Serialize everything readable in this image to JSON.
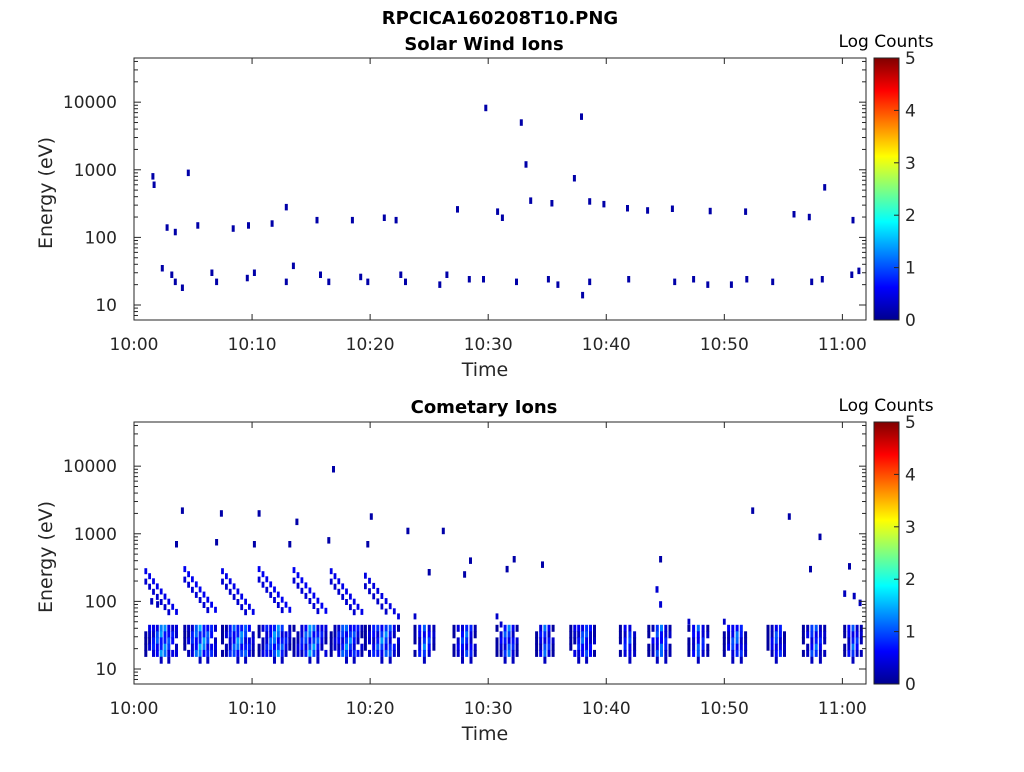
{
  "figure": {
    "title": "RPCICA160208T10.PNG"
  },
  "chart_data": [
    {
      "type": "heatmap",
      "title": "Solar Wind Ions",
      "xlabel": "Time",
      "ylabel": "Energy (eV)",
      "xlim_minutes": [
        0,
        62
      ],
      "x_ticks": [
        {
          "m": 0,
          "label": "10:00"
        },
        {
          "m": 10,
          "label": "10:10"
        },
        {
          "m": 20,
          "label": "10:20"
        },
        {
          "m": 30,
          "label": "10:30"
        },
        {
          "m": 40,
          "label": "10:40"
        },
        {
          "m": 50,
          "label": "10:50"
        },
        {
          "m": 60,
          "label": "11:00"
        }
      ],
      "yscale": "log",
      "ylim_eV": [
        6,
        45000
      ],
      "y_ticks": [
        {
          "v": 10,
          "label": "10"
        },
        {
          "v": 100,
          "label": "100"
        },
        {
          "v": 1000,
          "label": "1000"
        },
        {
          "v": 10000,
          "label": "10000"
        }
      ],
      "colorbar": {
        "label": "Log Counts",
        "range": [
          0,
          5
        ],
        "ticks": [
          "0",
          "1",
          "2",
          "3",
          "4",
          "5"
        ],
        "colormap": "jet"
      },
      "cells": [
        [
          1.6,
          800,
          0.2
        ],
        [
          1.7,
          600,
          0.2
        ],
        [
          2.8,
          140,
          0.2
        ],
        [
          3.5,
          120,
          0.2
        ],
        [
          4.6,
          900,
          0.2
        ],
        [
          5.4,
          150,
          0.2
        ],
        [
          8.4,
          135,
          0.2
        ],
        [
          9.7,
          150,
          0.2
        ],
        [
          11.7,
          160,
          0.2
        ],
        [
          12.9,
          280,
          0.2
        ],
        [
          15.5,
          180,
          0.2
        ],
        [
          18.5,
          180,
          0.2
        ],
        [
          21.2,
          195,
          0.2
        ],
        [
          22.2,
          180,
          0.2
        ],
        [
          27.4,
          260,
          0.2
        ],
        [
          29.8,
          8200,
          0.2
        ],
        [
          30.8,
          240,
          0.2
        ],
        [
          31.2,
          195,
          0.2
        ],
        [
          32.8,
          5000,
          0.2
        ],
        [
          33.2,
          1200,
          0.2
        ],
        [
          33.6,
          350,
          0.2
        ],
        [
          35.4,
          320,
          0.2
        ],
        [
          37.3,
          750,
          0.2
        ],
        [
          37.9,
          6100,
          0.2
        ],
        [
          38.6,
          340,
          0.2
        ],
        [
          39.8,
          310,
          0.2
        ],
        [
          41.8,
          270,
          0.2
        ],
        [
          43.5,
          250,
          0.2
        ],
        [
          45.6,
          265,
          0.2
        ],
        [
          48.8,
          245,
          0.2
        ],
        [
          51.8,
          240,
          0.2
        ],
        [
          55.9,
          220,
          0.2
        ],
        [
          57.2,
          200,
          0.2
        ],
        [
          58.5,
          550,
          0.2
        ],
        [
          60.9,
          180,
          0.2
        ],
        [
          2.4,
          35,
          0.2
        ],
        [
          3.2,
          28,
          0.2
        ],
        [
          3.5,
          22,
          0.2
        ],
        [
          4.1,
          18,
          0.2
        ],
        [
          6.6,
          30,
          0.2
        ],
        [
          7.0,
          22,
          0.2
        ],
        [
          9.6,
          25,
          0.2
        ],
        [
          10.2,
          30,
          0.2
        ],
        [
          12.9,
          22,
          0.2
        ],
        [
          13.5,
          38,
          0.2
        ],
        [
          15.8,
          28,
          0.2
        ],
        [
          16.5,
          22,
          0.2
        ],
        [
          19.2,
          26,
          0.2
        ],
        [
          19.8,
          22,
          0.2
        ],
        [
          22.6,
          28,
          0.2
        ],
        [
          23.0,
          22,
          0.2
        ],
        [
          25.9,
          20,
          0.2
        ],
        [
          26.5,
          28,
          0.2
        ],
        [
          28.4,
          24,
          0.2
        ],
        [
          29.6,
          24,
          0.2
        ],
        [
          32.4,
          22,
          0.2
        ],
        [
          35.1,
          24,
          0.2
        ],
        [
          35.9,
          20,
          0.2
        ],
        [
          38.0,
          14,
          0.2
        ],
        [
          38.6,
          22,
          0.2
        ],
        [
          41.9,
          24,
          0.2
        ],
        [
          45.8,
          22,
          0.2
        ],
        [
          47.4,
          24,
          0.2
        ],
        [
          48.6,
          20,
          0.2
        ],
        [
          50.6,
          20,
          0.2
        ],
        [
          51.9,
          24,
          0.2
        ],
        [
          54.1,
          22,
          0.2
        ],
        [
          57.4,
          22,
          0.2
        ],
        [
          58.3,
          24,
          0.2
        ],
        [
          60.8,
          28,
          0.2
        ],
        [
          61.4,
          32,
          0.2
        ]
      ]
    },
    {
      "type": "heatmap",
      "title": "Cometary Ions",
      "xlabel": "Time",
      "ylabel": "Energy (eV)",
      "xlim_minutes": [
        0,
        62
      ],
      "x_ticks": [
        {
          "m": 0,
          "label": "10:00"
        },
        {
          "m": 10,
          "label": "10:10"
        },
        {
          "m": 20,
          "label": "10:20"
        },
        {
          "m": 30,
          "label": "10:30"
        },
        {
          "m": 40,
          "label": "10:40"
        },
        {
          "m": 50,
          "label": "10:50"
        },
        {
          "m": 60,
          "label": "11:00"
        }
      ],
      "yscale": "log",
      "ylim_eV": [
        6,
        45000
      ],
      "y_ticks": [
        {
          "v": 10,
          "label": "10"
        },
        {
          "v": 100,
          "label": "100"
        },
        {
          "v": 1000,
          "label": "1000"
        },
        {
          "v": 10000,
          "label": "10000"
        }
      ],
      "colorbar": {
        "label": "Log Counts",
        "range": [
          0,
          5
        ],
        "ticks": [
          "0",
          "1",
          "2",
          "3",
          "4",
          "5"
        ],
        "colormap": "jet"
      },
      "cells": [
        [
          16.9,
          9000,
          0.2
        ],
        [
          4.1,
          2200,
          0.2
        ],
        [
          7.4,
          2000,
          0.2
        ],
        [
          10.6,
          2000,
          0.2
        ],
        [
          20.1,
          1800,
          0.2
        ],
        [
          13.8,
          1500,
          0.2
        ],
        [
          26.2,
          1100,
          0.2
        ],
        [
          23.2,
          1100,
          0.2
        ],
        [
          52.4,
          2200,
          0.2
        ],
        [
          55.5,
          1800,
          0.2
        ],
        [
          58.1,
          900,
          0.2
        ],
        [
          3.6,
          700,
          0.2
        ],
        [
          7.0,
          750,
          0.2
        ],
        [
          10.2,
          700,
          0.2
        ],
        [
          13.2,
          700,
          0.2
        ],
        [
          16.5,
          800,
          0.2
        ],
        [
          19.8,
          700,
          0.2
        ],
        [
          28.5,
          400,
          0.2
        ],
        [
          32.2,
          420,
          0.2
        ],
        [
          34.6,
          350,
          0.2
        ],
        [
          28.0,
          250,
          0.2
        ],
        [
          31.6,
          300,
          0.2
        ],
        [
          25.0,
          270,
          0.2
        ],
        [
          44.6,
          420,
          0.2
        ],
        [
          60.6,
          330,
          0.2
        ],
        [
          57.3,
          300,
          0.2
        ],
        [
          1.5,
          100,
          0.3
        ],
        [
          2.0,
          90,
          0.3
        ],
        [
          44.3,
          150,
          0.4
        ],
        [
          44.6,
          90,
          0.4
        ],
        [
          61.0,
          120,
          0.3
        ],
        [
          61.5,
          95,
          0.3
        ],
        [
          60.2,
          130,
          0.3
        ]
      ],
      "clusters": [
        {
          "t": 2.3,
          "w": 2.6,
          "top": 280,
          "tail": 1.3,
          "peak": 1.6
        },
        {
          "t": 5.6,
          "w": 2.6,
          "top": 300,
          "tail": 1.4,
          "peak": 1.7
        },
        {
          "t": 8.8,
          "w": 2.6,
          "top": 280,
          "tail": 1.3,
          "peak": 1.6
        },
        {
          "t": 11.9,
          "w": 2.6,
          "top": 300,
          "tail": 1.4,
          "peak": 1.6
        },
        {
          "t": 14.9,
          "w": 2.7,
          "top": 290,
          "tail": 1.4,
          "peak": 1.6
        },
        {
          "t": 18.0,
          "w": 2.6,
          "top": 280,
          "tail": 1.3,
          "peak": 1.5
        },
        {
          "t": 21.0,
          "w": 2.8,
          "top": 240,
          "tail": 1.2,
          "peak": 1.5
        },
        {
          "t": 24.6,
          "w": 1.6,
          "top": 60,
          "tail": 0.9,
          "peak": 1.4
        },
        {
          "t": 28.0,
          "w": 1.8,
          "top": 40,
          "tail": 0.9,
          "peak": 1.3
        },
        {
          "t": 31.6,
          "w": 1.7,
          "top": 60,
          "tail": 0.9,
          "peak": 1.4
        },
        {
          "t": 34.8,
          "w": 1.4,
          "top": 36,
          "tail": 0.8,
          "peak": 1.3
        },
        {
          "t": 38.0,
          "w": 2.0,
          "top": 40,
          "tail": 0.9,
          "peak": 1.3
        },
        {
          "t": 41.8,
          "w": 1.2,
          "top": 36,
          "tail": 0.8,
          "peak": 1.3
        },
        {
          "t": 44.5,
          "w": 1.8,
          "top": 40,
          "tail": 0.9,
          "peak": 1.4
        },
        {
          "t": 47.8,
          "w": 1.6,
          "top": 50,
          "tail": 0.9,
          "peak": 1.3
        },
        {
          "t": 50.9,
          "w": 1.8,
          "top": 50,
          "tail": 0.9,
          "peak": 1.4
        },
        {
          "t": 54.4,
          "w": 1.4,
          "top": 40,
          "tail": 0.8,
          "peak": 1.2
        },
        {
          "t": 57.6,
          "w": 1.8,
          "top": 40,
          "tail": 0.9,
          "peak": 1.3
        },
        {
          "t": 60.9,
          "w": 1.4,
          "top": 36,
          "tail": 0.8,
          "peak": 1.3
        }
      ]
    }
  ]
}
